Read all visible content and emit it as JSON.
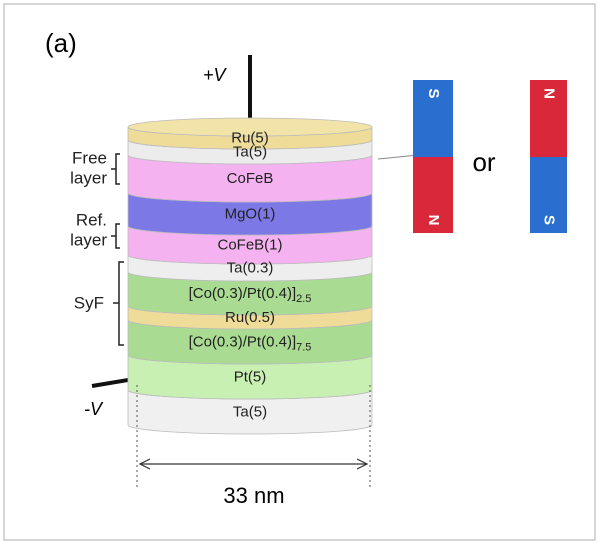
{
  "panel_label": "(a)",
  "electrodes": {
    "top": "+V",
    "bottom": "-V"
  },
  "stack": {
    "layers": [
      {
        "label": "Ru(5)"
      },
      {
        "label": "Ta(5)"
      },
      {
        "label": "CoFeB"
      },
      {
        "label": "MgO(1)"
      },
      {
        "label": "CoFeB(1)"
      },
      {
        "label": "Ta(0.3)"
      },
      {
        "label": "[Co(0.3)/Pt(0.4)]",
        "subscript": "2.5"
      },
      {
        "label": "Ru(0.5)"
      },
      {
        "label": "[Co(0.3)/Pt(0.4)]",
        "subscript": "7.5"
      },
      {
        "label": "Pt(5)"
      },
      {
        "label": "Ta(5)"
      }
    ]
  },
  "groups": [
    {
      "lines": [
        "Free",
        "layer"
      ]
    },
    {
      "lines": [
        "Ref.",
        "layer"
      ]
    },
    {
      "lines": [
        "SyF"
      ]
    }
  ],
  "width_label": "33 nm",
  "or": "or",
  "magnets": [
    {
      "top": "S",
      "bottom": "N"
    },
    {
      "top": "N",
      "bottom": "S"
    }
  ]
}
